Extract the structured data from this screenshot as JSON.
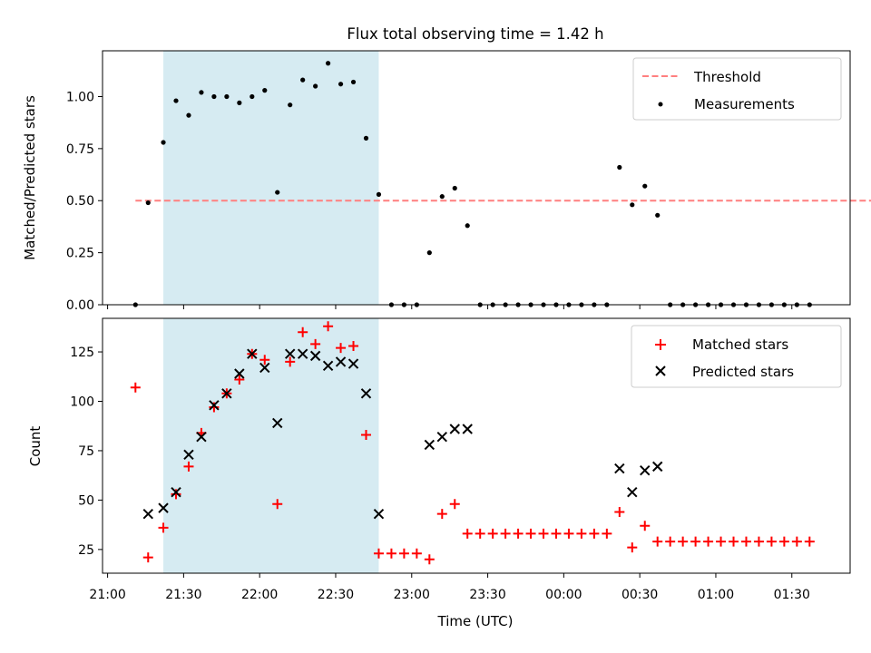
{
  "title": "Flux total observing time = 1.42 h",
  "colors": {
    "threshold": "#ff7f7f",
    "measurements": "#000000",
    "matched": "#ff0000",
    "predicted": "#000000",
    "span": "#add8e6"
  },
  "chart_data": [
    {
      "type": "scatter",
      "ylabel": "Matched/Predicted stars",
      "ylim": [
        0,
        1.22
      ],
      "yticks": [
        "0.00",
        "0.25",
        "0.50",
        "0.75",
        "1.00"
      ],
      "ytick_values": [
        0,
        0.25,
        0.5,
        0.75,
        1.0
      ],
      "shaded_span": [
        "21:22",
        "22:47"
      ],
      "legend": {
        "position": "upper right",
        "entries": [
          "Threshold",
          "Measurements"
        ]
      },
      "threshold": {
        "name": "Threshold",
        "value": 0.5,
        "x_range": [
          "21:11",
          "23:59 +1"
        ]
      },
      "series": [
        {
          "name": "Measurements",
          "x": [
            "21:11",
            "21:16",
            "21:22",
            "21:27",
            "21:32",
            "21:37",
            "21:42",
            "21:47",
            "21:52",
            "21:57",
            "22:02",
            "22:07",
            "22:12",
            "22:17",
            "22:22",
            "22:27",
            "22:32",
            "22:37",
            "22:42",
            "22:47",
            "22:52",
            "22:57",
            "23:02",
            "23:07",
            "23:12",
            "23:17",
            "23:22",
            "23:27",
            "23:32",
            "23:37",
            "23:42",
            "23:47",
            "23:52",
            "23:57",
            "00:02",
            "00:07",
            "00:12",
            "00:17",
            "00:22",
            "00:27",
            "00:32",
            "00:37",
            "00:42",
            "00:47",
            "00:52",
            "00:57",
            "01:02",
            "01:07",
            "01:12",
            "01:17",
            "01:22",
            "01:27",
            "01:32",
            "01:37"
          ],
          "values": [
            0.0,
            0.49,
            0.78,
            0.98,
            0.91,
            1.02,
            1.0,
            1.0,
            0.97,
            1.0,
            1.03,
            0.54,
            0.96,
            1.08,
            1.05,
            1.16,
            1.06,
            1.07,
            0.8,
            0.53,
            0.0,
            0.0,
            0.0,
            0.25,
            0.52,
            0.56,
            0.38,
            0.0,
            0.0,
            0.0,
            0.0,
            0.0,
            0.0,
            0.0,
            0.0,
            0.0,
            0.0,
            0.0,
            0.66,
            0.48,
            0.57,
            0.43,
            0.0,
            0.0,
            0.0,
            0.0,
            0.0,
            0.0,
            0.0,
            0.0,
            0.0,
            0.0,
            0.0,
            0.0
          ]
        }
      ]
    },
    {
      "type": "scatter",
      "ylabel": "Count",
      "xlabel": "Time (UTC)",
      "ylim": [
        13,
        142
      ],
      "yticks": [
        "25",
        "50",
        "75",
        "100",
        "125"
      ],
      "ytick_values": [
        25,
        50,
        75,
        100,
        125
      ],
      "xticks": [
        "21:00",
        "21:30",
        "22:00",
        "22:30",
        "23:00",
        "23:30",
        "00:00",
        "00:30",
        "01:00",
        "01:30"
      ],
      "xlim": [
        "20:58",
        "01:53"
      ],
      "shaded_span": [
        "21:22",
        "22:47"
      ],
      "legend": {
        "position": "upper right",
        "entries": [
          "Matched stars",
          "Predicted stars"
        ]
      },
      "series": [
        {
          "name": "Matched stars",
          "x": [
            "21:11",
            "21:16",
            "21:22",
            "21:27",
            "21:32",
            "21:37",
            "21:42",
            "21:47",
            "21:52",
            "21:57",
            "22:02",
            "22:07",
            "22:12",
            "22:17",
            "22:22",
            "22:27",
            "22:32",
            "22:37",
            "22:42",
            "22:47",
            "22:52",
            "22:57",
            "23:02",
            "23:07",
            "23:12",
            "23:17",
            "23:22",
            "23:27",
            "23:32",
            "23:37",
            "23:42",
            "23:47",
            "23:52",
            "23:57",
            "00:02",
            "00:07",
            "00:12",
            "00:17",
            "00:22",
            "00:27",
            "00:32",
            "00:37",
            "00:42",
            "00:47",
            "00:52",
            "00:57",
            "01:02",
            "01:07",
            "01:12",
            "01:17",
            "01:22",
            "01:27",
            "01:32",
            "01:37"
          ],
          "values": [
            107,
            21,
            36,
            53,
            67,
            84,
            97,
            104,
            111,
            124,
            121,
            48,
            120,
            135,
            129,
            138,
            127,
            128,
            83,
            23,
            23,
            23,
            23,
            20,
            43,
            48,
            33,
            33,
            33,
            33,
            33,
            33,
            33,
            33,
            33,
            33,
            33,
            33,
            44,
            26,
            37,
            29,
            29,
            29,
            29,
            29,
            29,
            29,
            29,
            29,
            29,
            29,
            29,
            29
          ]
        },
        {
          "name": "Predicted stars",
          "x": [
            "21:16",
            "21:22",
            "21:27",
            "21:32",
            "21:37",
            "21:42",
            "21:47",
            "21:52",
            "21:57",
            "22:02",
            "22:07",
            "22:12",
            "22:17",
            "22:22",
            "22:27",
            "22:32",
            "22:37",
            "22:42",
            "22:47",
            "23:07",
            "23:12",
            "23:17",
            "23:22",
            "00:22",
            "00:27",
            "00:32",
            "00:37"
          ],
          "values": [
            43,
            46,
            54,
            73,
            82,
            98,
            104,
            114,
            124,
            117,
            89,
            124,
            124,
            123,
            118,
            120,
            119,
            104,
            43,
            78,
            82,
            86,
            86,
            66,
            54,
            65,
            67
          ]
        }
      ]
    }
  ]
}
